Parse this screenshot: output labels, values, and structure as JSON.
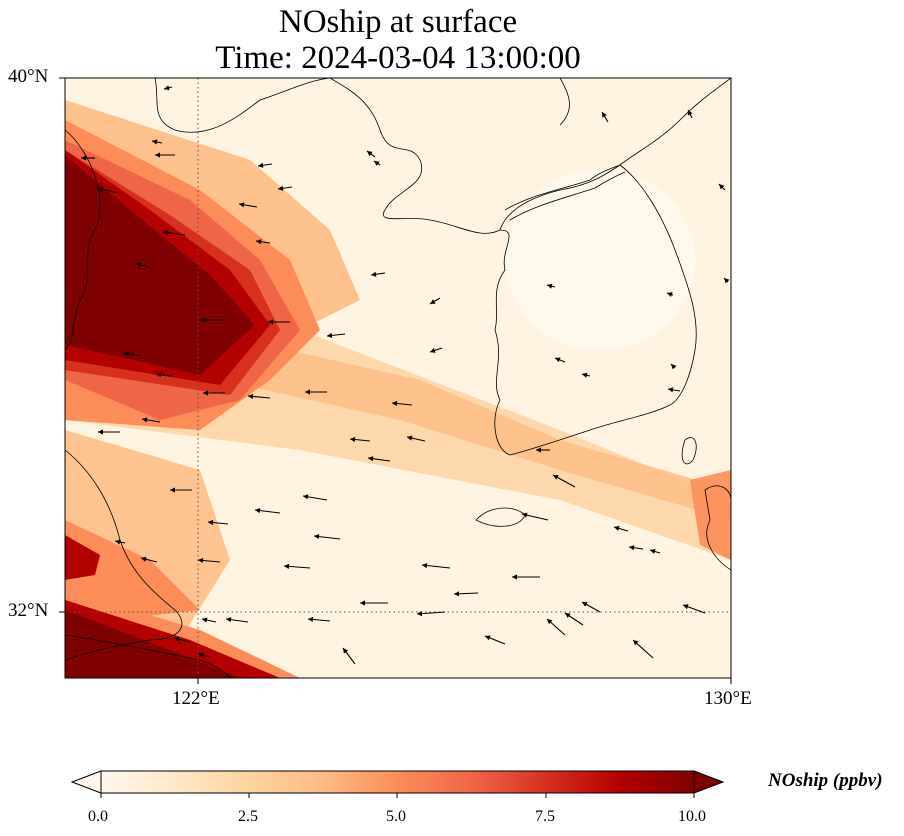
{
  "title": {
    "line1": "NOship at surface",
    "line2": "Time: 2024-03-04 13:00:00"
  },
  "map": {
    "region": "Yellow Sea and Korean Peninsula",
    "lon_range": [
      119,
      130
    ],
    "lat_range": [
      31,
      40
    ],
    "gridlines": {
      "lon": [
        122
      ],
      "lat": [
        32
      ],
      "style": "dotted"
    },
    "lat_tick_labels": [
      "40°N",
      "32°N"
    ],
    "lon_tick_labels": [
      "122°E",
      "130°E"
    ],
    "field": {
      "variable": "NOship",
      "units": "ppbv",
      "colormap": "OrRd",
      "description": "high concentrations along Chinese coast and shipping lane toward southern Korea"
    },
    "wind_vectors": "predominantly westward (easterly winds) over the sea"
  },
  "colorbar": {
    "label": "NOship (ppbv)",
    "ticks": [
      "0.0",
      "2.5",
      "5.0",
      "7.5",
      "10.0"
    ],
    "range": [
      0,
      10
    ],
    "extend": "both",
    "colors": [
      "#fff7ec",
      "#fee8c8",
      "#fdd49e",
      "#fdbb84",
      "#fc8d59",
      "#ef6548",
      "#d7301f",
      "#b30000",
      "#7f0000"
    ]
  }
}
